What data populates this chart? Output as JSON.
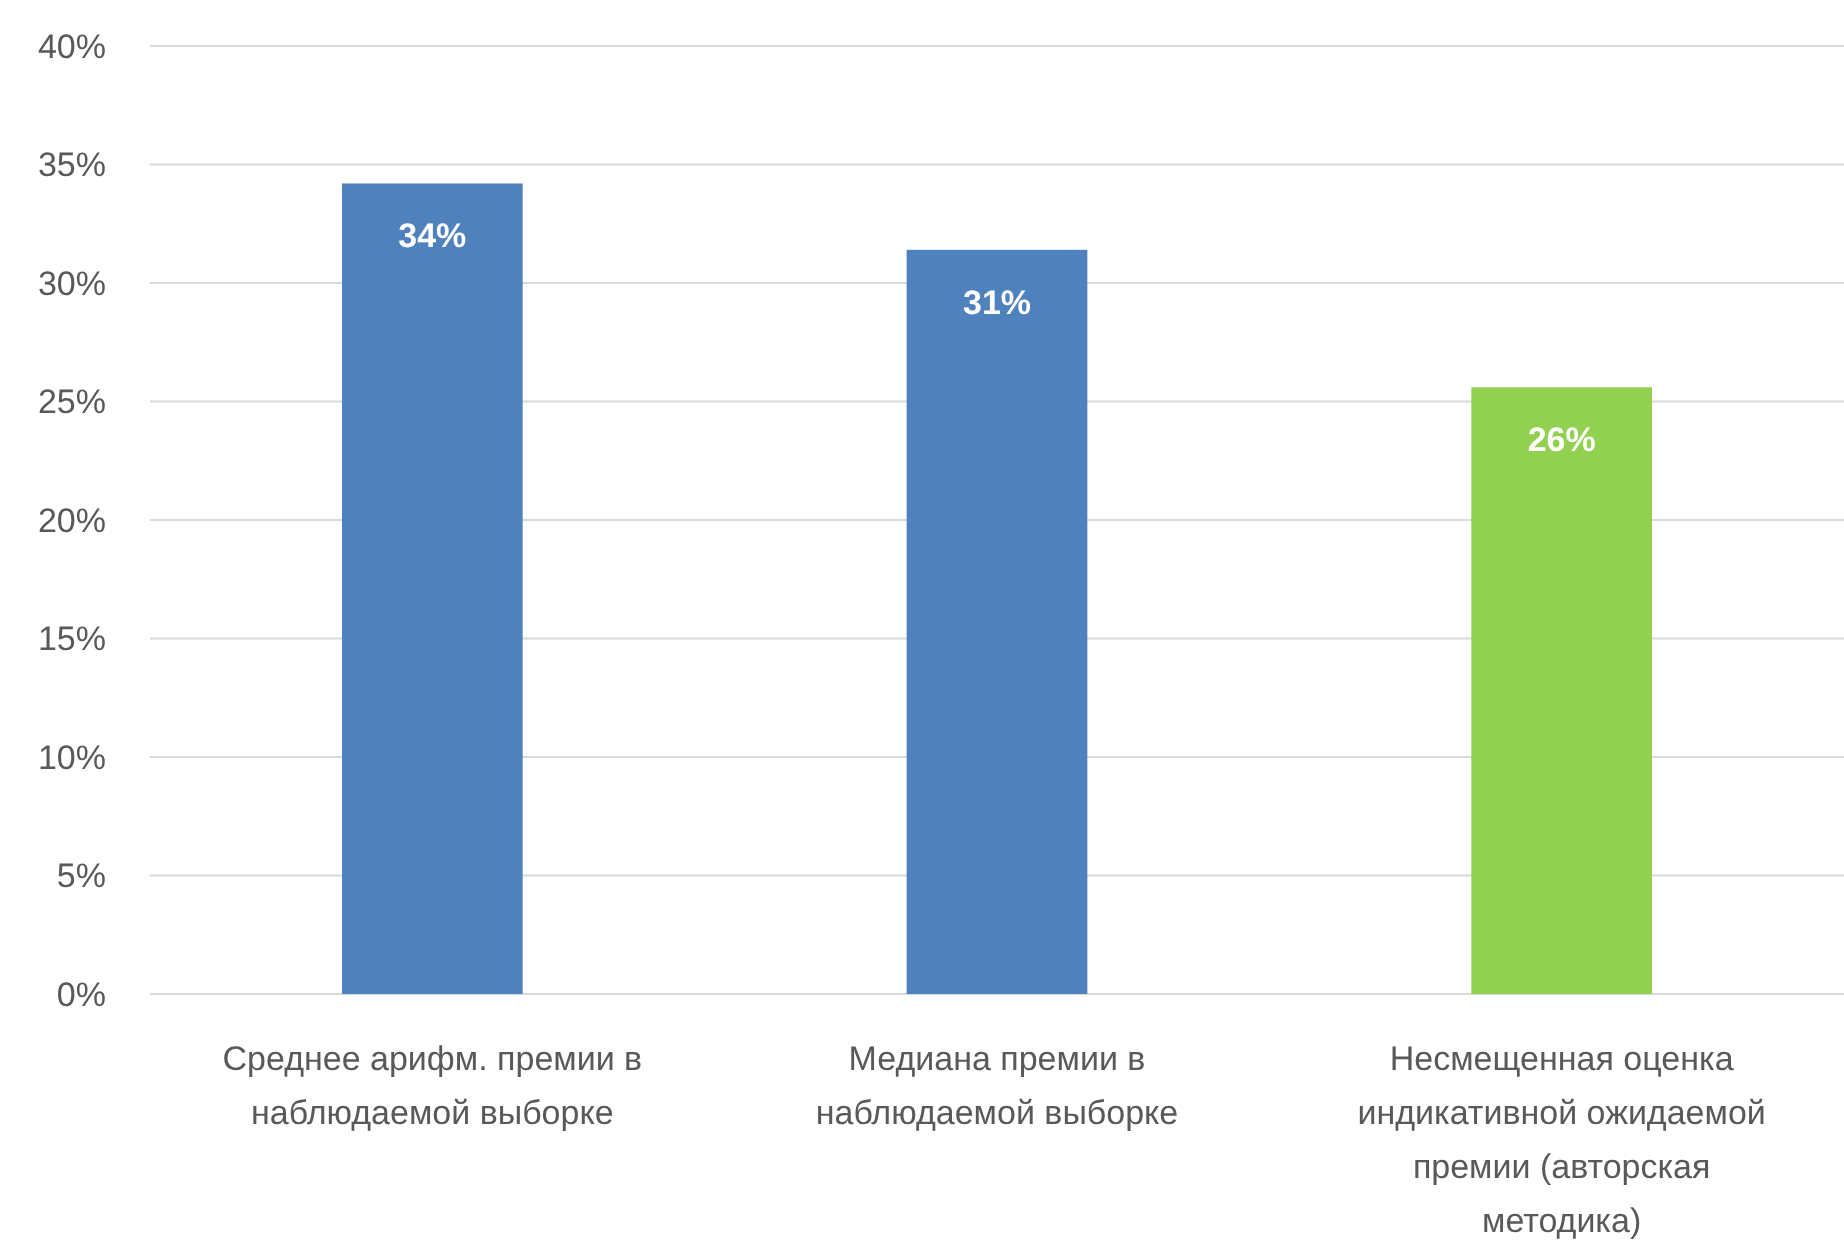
{
  "chart_data": {
    "type": "bar",
    "categories": [
      "Среднее арифм. премии в наблюдаемой выборке",
      "Медиана премии в наблюдаемой выборке",
      "Несмещенная оценка индикативной ожидаемой премии (авторская методика)"
    ],
    "values": [
      34.2,
      31.4,
      25.6
    ],
    "colors": [
      "#4f81bd",
      "#4f81bd",
      "#92d050"
    ],
    "value_labels": [
      "34%",
      "31%",
      "26%"
    ],
    "ylim": [
      0,
      40
    ],
    "yticks": [
      {
        "value": 0,
        "label": "0%"
      },
      {
        "value": 5,
        "label": "5%"
      },
      {
        "value": 10,
        "label": "10%"
      },
      {
        "value": 15,
        "label": "15%"
      },
      {
        "value": 20,
        "label": "20%"
      },
      {
        "value": 25,
        "label": "25%"
      },
      {
        "value": 30,
        "label": "30%"
      },
      {
        "value": 35,
        "label": "35%"
      },
      {
        "value": 40,
        "label": "40%"
      }
    ],
    "grid": "y"
  }
}
